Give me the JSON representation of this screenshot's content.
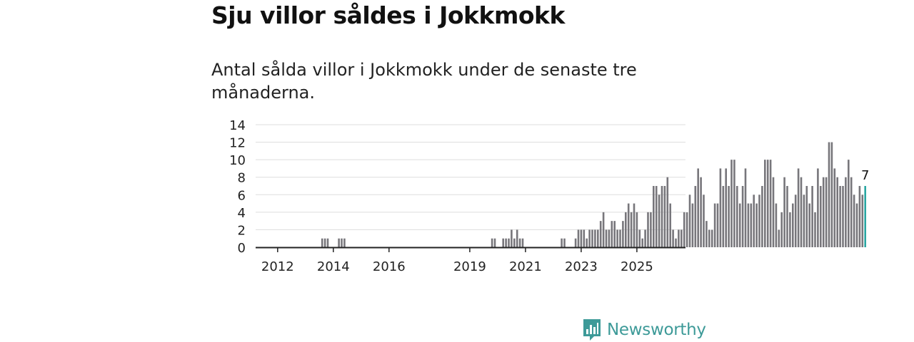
{
  "header": {
    "title": "Sju villor såldes i Jokkmokk",
    "subtitle": "Antal sålda villor i Jokkmokk under de senaste tre månaderna."
  },
  "colors": {
    "bar": "#77767b",
    "highlight": "#2aa6a2",
    "grid": "#dddddd",
    "axis": "#222222",
    "brand": "#3d9a98"
  },
  "brand": {
    "name": "Newsworthy",
    "icon": "newsworthy-logo-icon"
  },
  "chart_data": {
    "type": "bar",
    "title": "Antal sålda villor i Jokkmokk under de senaste tre månaderna.",
    "xlabel": "",
    "ylabel": "",
    "ylim": [
      0,
      14
    ],
    "yticks": [
      "0",
      "2",
      "4",
      "6",
      "8",
      "10",
      "12",
      "14"
    ],
    "xticks": [
      {
        "label": "2012",
        "index": 7
      },
      {
        "label": "2014",
        "index": 27
      },
      {
        "label": "2016",
        "index": 47
      },
      {
        "label": "2019",
        "index": 76
      },
      {
        "label": "2021",
        "index": 96
      },
      {
        "label": "2023",
        "index": 116
      },
      {
        "label": "2025",
        "index": 136
      }
    ],
    "start_month": "2011-01",
    "values": [
      0,
      0,
      0,
      0,
      0,
      0,
      0,
      0,
      0,
      0,
      0,
      0,
      0,
      0,
      0,
      0,
      0,
      0,
      0,
      0,
      0,
      0,
      0,
      1,
      1,
      1,
      0,
      0,
      0,
      1,
      1,
      1,
      0,
      0,
      0,
      0,
      0,
      0,
      0,
      0,
      0,
      0,
      0,
      0,
      0,
      0,
      0,
      0,
      0,
      0,
      0,
      0,
      0,
      0,
      0,
      0,
      0,
      0,
      0,
      0,
      0,
      0,
      0,
      0,
      0,
      0,
      0,
      0,
      0,
      0,
      0,
      0,
      0,
      0,
      0,
      0,
      0,
      0,
      0,
      0,
      0,
      0,
      0,
      0,
      1,
      1,
      0,
      0,
      1,
      1,
      1,
      2,
      1,
      2,
      1,
      1,
      0,
      0,
      0,
      0,
      0,
      0,
      0,
      0,
      0,
      0,
      0,
      0,
      0,
      1,
      1,
      0,
      0,
      0,
      1,
      2,
      2,
      2,
      1,
      2,
      2,
      2,
      2,
      3,
      4,
      2,
      2,
      3,
      3,
      2,
      2,
      3,
      4,
      5,
      4,
      5,
      4,
      2,
      1,
      2,
      4,
      4,
      7,
      7,
      6,
      7,
      7,
      8,
      5,
      2,
      1,
      2,
      2,
      4,
      4,
      6,
      5,
      7,
      9,
      8,
      6,
      3,
      2,
      2,
      5,
      5,
      9,
      7,
      9,
      7,
      10,
      10,
      7,
      5,
      7,
      9,
      5,
      5,
      6,
      5,
      6,
      7,
      10,
      10,
      10,
      8,
      5,
      2,
      4,
      8,
      7,
      4,
      5,
      6,
      9,
      8,
      6,
      7,
      5,
      7,
      4,
      9,
      7,
      8,
      8,
      12,
      12,
      9,
      8,
      7,
      7,
      8,
      10,
      8,
      6,
      5,
      7,
      6,
      7
    ],
    "highlight": {
      "index": 218,
      "label": "7"
    }
  }
}
